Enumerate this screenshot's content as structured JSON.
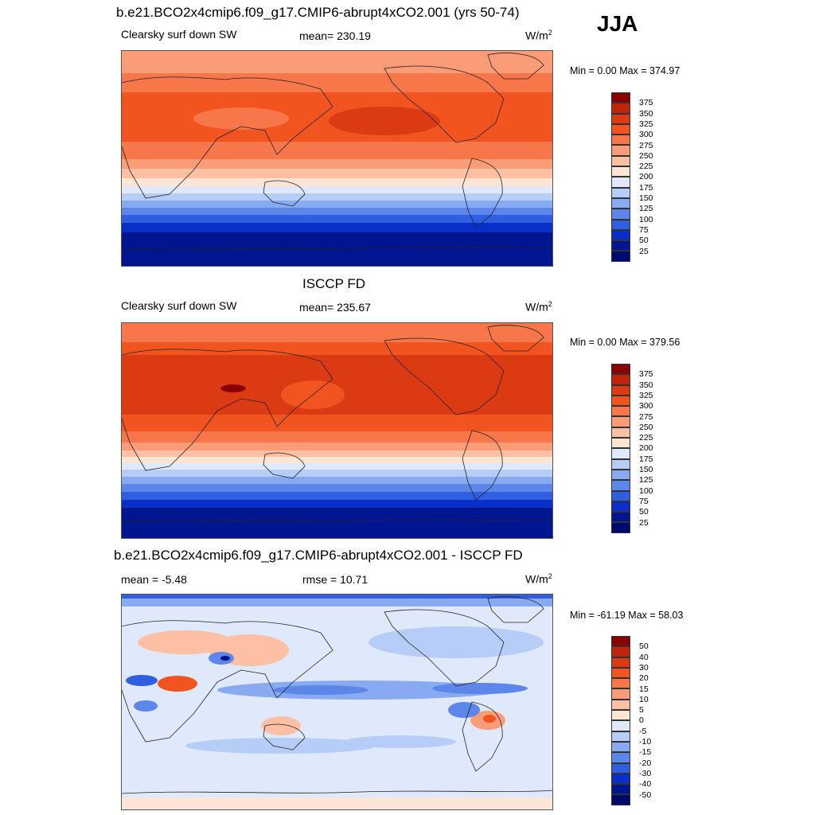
{
  "season": "JJA",
  "panels": [
    {
      "title": "b.e21.BCO2x4cmip6.f09_g17.CMIP6-abrupt4xCO2.001 (yrs 50-74)",
      "left_label": "Clearsky surf down SW",
      "center_label": "mean= 230.19",
      "units": "W/m",
      "units_sup": "2",
      "minmax": "Min =   0.00 Max = 374.97",
      "colorbar_labels": [
        "375",
        "350",
        "325",
        "300",
        "275",
        "250",
        "225",
        "200",
        "175",
        "150",
        "125",
        "100",
        "75",
        "50",
        "25"
      ],
      "colorbar_colors": [
        "#8b0000",
        "#c0240b",
        "#dc3a12",
        "#f1541f",
        "#f7774a",
        "#fb9c78",
        "#fdc0a4",
        "#fde5d6",
        "#dfe9fb",
        "#b5cdf7",
        "#87aaf0",
        "#5c86ea",
        "#2f5fe0",
        "#0a2fc9",
        "#001690",
        "#000a6e"
      ]
    },
    {
      "title": "ISCCP FD",
      "left_label": "Clearsky surf down SW",
      "center_label": "mean= 235.67",
      "units": "W/m",
      "units_sup": "2",
      "minmax": "Min =   0.00 Max = 379.56",
      "colorbar_labels": [
        "375",
        "350",
        "325",
        "300",
        "275",
        "250",
        "225",
        "200",
        "175",
        "150",
        "125",
        "100",
        "75",
        "50",
        "25"
      ],
      "colorbar_colors": [
        "#8b0000",
        "#c0240b",
        "#dc3a12",
        "#f1541f",
        "#f7774a",
        "#fb9c78",
        "#fdc0a4",
        "#fde5d6",
        "#dfe9fb",
        "#b5cdf7",
        "#87aaf0",
        "#5c86ea",
        "#2f5fe0",
        "#0a2fc9",
        "#001690",
        "#000a6e"
      ]
    },
    {
      "title": "b.e21.BCO2x4cmip6.f09_g17.CMIP6-abrupt4xCO2.001 - ISCCP FD",
      "left_label": "mean =  -5.48",
      "center_label": "rmse =  10.71",
      "units": "W/m",
      "units_sup": "2",
      "minmax": "Min = -61.19 Max =  58.03",
      "colorbar_labels": [
        "50",
        "40",
        "30",
        "20",
        "15",
        "10",
        "5",
        "0",
        "-5",
        "-10",
        "-15",
        "-20",
        "-30",
        "-40",
        "-50"
      ],
      "colorbar_colors": [
        "#8b0000",
        "#c0240b",
        "#dc3a12",
        "#f1541f",
        "#f7774a",
        "#fb9c78",
        "#fdc0a4",
        "#fde5d6",
        "#dfe9fb",
        "#b5cdf7",
        "#87aaf0",
        "#5c86ea",
        "#2f5fe0",
        "#0a2fc9",
        "#001690",
        "#000a6e"
      ]
    }
  ]
}
